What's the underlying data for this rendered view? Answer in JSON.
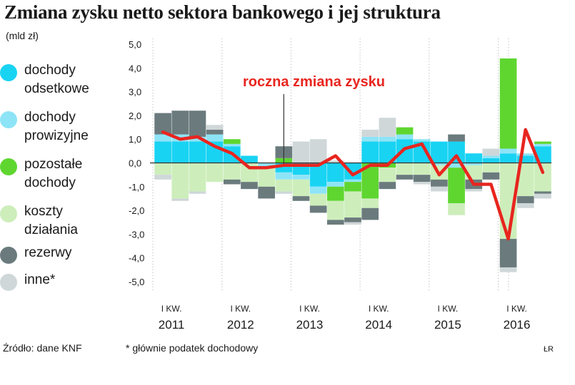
{
  "title": "Zmiana zysku netto sektora bankowego i jej struktura",
  "unit": "(mld zł)",
  "legend": [
    {
      "label": "dochody\nodsetkowe",
      "color": "#19d3f3"
    },
    {
      "label": "dochody\nprowizyjne",
      "color": "#8ee4f7"
    },
    {
      "label": "pozostałe\ndochody",
      "color": "#5fd630"
    },
    {
      "label": "koszty\ndziałania",
      "color": "#cdeebb"
    },
    {
      "label": "rezerwy",
      "color": "#6b7b7d"
    },
    {
      "label": "inne*",
      "color": "#cfd7d9"
    }
  ],
  "source": "Źródło: dane KNF",
  "footnote": "* głównie podatek dochodowy",
  "credit": "ŁR",
  "chart_data": {
    "type": "bar",
    "stacked": true,
    "ylim": [
      -5,
      5
    ],
    "yticks": [
      "5,0",
      "4,0",
      "3,0",
      "2,0",
      "1,0",
      "0,0",
      "-1,0",
      "-2,0",
      "-3,0",
      "-4,0",
      "-5,0"
    ],
    "quarters": [
      "I 2011",
      "II 2011",
      "III 2011",
      "IV 2011",
      "I 2012",
      "II 2012",
      "III 2012",
      "IV 2012",
      "I 2013",
      "II 2013",
      "III 2013",
      "IV 2013",
      "I 2014",
      "II 2014",
      "III 2014",
      "IV 2014",
      "I 2015",
      "II 2015",
      "III 2015",
      "IV 2015",
      "I 2016",
      "II 2016",
      "III 2016"
    ],
    "xlabels": [
      {
        "index": 0,
        "q": "I KW.",
        "year": "2011"
      },
      {
        "index": 4,
        "q": "I KW.",
        "year": "2012"
      },
      {
        "index": 8,
        "q": "I KW.",
        "year": "2013"
      },
      {
        "index": 12,
        "q": "I KW.",
        "year": "2014"
      },
      {
        "index": 16,
        "q": "I KW.",
        "year": "2015"
      },
      {
        "index": 20,
        "q": "I KW.",
        "year": "2016"
      }
    ],
    "series": [
      {
        "name": "dochody odsetkowe",
        "color": "#19d3f3",
        "values": [
          0.9,
          0.9,
          0.9,
          0.9,
          0.7,
          0.3,
          0.0,
          -0.4,
          -0.5,
          -1.0,
          -0.8,
          -0.7,
          0.9,
          0.9,
          1.0,
          0.9,
          0.9,
          0.9,
          0.4,
          0.2,
          0.4,
          0.3,
          0.7
        ]
      },
      {
        "name": "dochody prowizyjne",
        "color": "#8ee4f7",
        "values": [
          0.3,
          0.3,
          0.2,
          0.3,
          0.1,
          0.0,
          -0.2,
          -0.3,
          -0.2,
          -0.3,
          -0.2,
          -0.1,
          0.2,
          0.2,
          0.2,
          0.1,
          -0.1,
          -0.2,
          -0.1,
          0.1,
          0.2,
          0.1,
          0.1
        ]
      },
      {
        "name": "pozostałe dochody",
        "color": "#5fd630",
        "values": [
          0.0,
          0.0,
          0.0,
          0.0,
          0.2,
          0.0,
          0.0,
          0.2,
          0.0,
          0.0,
          -0.6,
          -0.4,
          -1.5,
          -0.2,
          0.3,
          0.0,
          0.0,
          -1.5,
          0.0,
          0.0,
          3.8,
          0.0,
          0.1
        ]
      },
      {
        "name": "koszty działania",
        "color": "#cdeebb",
        "values": [
          -0.5,
          -1.5,
          -1.2,
          -0.8,
          -0.7,
          -0.8,
          -0.8,
          -0.5,
          -0.7,
          -0.5,
          -0.8,
          -1.1,
          -0.4,
          -0.6,
          -0.5,
          -0.5,
          -0.6,
          -0.5,
          -0.6,
          -0.4,
          -3.2,
          -1.4,
          -1.2
        ]
      },
      {
        "name": "rezerwy",
        "color": "#6b7b7d",
        "values": [
          0.9,
          1.0,
          1.1,
          0.2,
          -0.2,
          -0.3,
          -0.5,
          0.5,
          -0.2,
          -0.3,
          -0.2,
          -0.2,
          -0.5,
          -0.3,
          -0.2,
          -0.3,
          -0.3,
          0.3,
          -0.4,
          -0.3,
          -1.2,
          -0.3,
          -0.1
        ]
      },
      {
        "name": "inne",
        "color": "#cfd7d9",
        "values": [
          -0.2,
          -0.1,
          -0.1,
          0.2,
          0.0,
          0.0,
          0.0,
          -0.1,
          0.9,
          1.0,
          0.1,
          -0.1,
          0.3,
          0.8,
          0.0,
          -0.1,
          -0.2,
          0.0,
          -0.1,
          0.3,
          -0.2,
          -0.2,
          -0.2
        ]
      }
    ],
    "line": {
      "name": "roczna zmiana zysku",
      "color": "#e8251f",
      "values": [
        1.3,
        1.0,
        1.1,
        0.7,
        0.4,
        -0.2,
        -0.2,
        -0.1,
        -0.1,
        -0.1,
        0.3,
        -0.5,
        -0.1,
        -0.1,
        0.6,
        0.8,
        -0.5,
        0.3,
        -0.9,
        -0.9,
        -3.2,
        1.4,
        -0.4
      ]
    },
    "annotation": {
      "text": "roczna zmiana zysku",
      "color": "#e8251f"
    }
  }
}
